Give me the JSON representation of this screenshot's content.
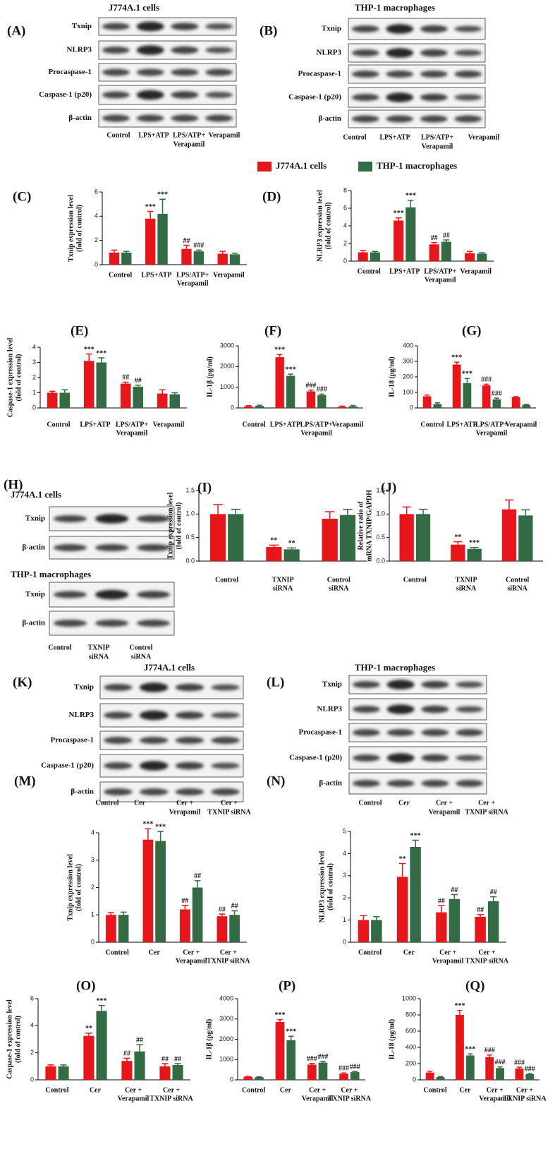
{
  "legend": [
    {
      "name": "J774A.1 cells",
      "color": "#e8161b"
    },
    {
      "name": "THP-1 macrophages",
      "color": "#336b44"
    }
  ],
  "blots": [
    {
      "label": "(A)",
      "groups": [
        {
          "title": "J774A.1 cells",
          "rows": [
            "Txnip",
            "NLRP3",
            "Procaspase-1",
            "Caspase-1 (p20)",
            "β-actin"
          ]
        }
      ],
      "columns": [
        [
          "Control"
        ],
        [
          "LPS+ATP"
        ],
        [
          "LPS/ATP+",
          "Verapamil"
        ],
        [
          "Verapamil"
        ]
      ]
    },
    {
      "label": "(B)",
      "groups": [
        {
          "title": "THP-1 macrophages",
          "rows": [
            "Txnip",
            "NLRP3",
            "Procaspase-1",
            "Caspase-1 (p20)",
            "β-actin"
          ]
        }
      ],
      "columns": [
        [
          "Control"
        ],
        [
          "LPS+ATP"
        ],
        [
          "LPS/ATP+",
          "Verapamil"
        ],
        [
          "Verapamil"
        ]
      ]
    },
    {
      "label": "(H)",
      "groups": [
        {
          "title": "J774A.1 cells",
          "rows": [
            "Txnip",
            "β-actin"
          ]
        },
        {
          "title": "THP-1 macrophages",
          "rows": [
            "Txnip",
            "β-actin"
          ]
        }
      ],
      "columns": [
        [
          "Control"
        ],
        [
          "TXNIP",
          "siRNA"
        ],
        [
          "Control",
          "siRNA"
        ]
      ]
    },
    {
      "label": "(K)",
      "groups": [
        {
          "title": "J774A.1 cells",
          "rows": [
            "Txnip",
            "NLRP3",
            "Procaspase-1",
            "Caspase-1 (p20)",
            "β-actin"
          ]
        }
      ],
      "columns": [
        [
          "Control"
        ],
        [
          "Cer"
        ],
        [
          "Cer +",
          "Verapamil"
        ],
        [
          "Cer +",
          "TXNIP siRNA"
        ]
      ]
    },
    {
      "label": "(L)",
      "groups": [
        {
          "title": "THP-1 macrophages",
          "rows": [
            "Txnip",
            "NLRP3",
            "Procaspase-1",
            "Caspase-1 (p20)",
            "β-actin"
          ]
        }
      ],
      "columns": [
        [
          "Control"
        ],
        [
          "Cer"
        ],
        [
          "Cer +",
          "Verapamil"
        ],
        [
          "Cer +",
          "TXNIP siRNA"
        ]
      ]
    }
  ],
  "chart_data": [
    {
      "type": "bar",
      "label": "(C)",
      "ylabel": [
        "Txnip expression level",
        "(fold of control)"
      ],
      "categories": [
        [
          "Control"
        ],
        [
          "LPS+ATP"
        ],
        [
          "LPS/ATP+",
          "Verapamil"
        ],
        [
          "Verapamil"
        ]
      ],
      "ylim": [
        0,
        6
      ],
      "yticks": [
        0,
        2,
        4,
        6
      ],
      "series": [
        {
          "color": "#e8161b",
          "values": [
            1.0,
            3.8,
            1.3,
            0.9
          ],
          "errors": [
            0.2,
            0.6,
            0.3,
            0.2
          ],
          "annotations": [
            null,
            "***",
            "##",
            null
          ]
        },
        {
          "color": "#336b44",
          "values": [
            1.0,
            4.2,
            1.1,
            0.85
          ],
          "errors": [
            0.1,
            1.2,
            0.1,
            0.1
          ],
          "annotations": [
            null,
            "***",
            "###",
            null
          ]
        }
      ]
    },
    {
      "type": "bar",
      "label": "(D)",
      "ylabel": [
        "NLRP3 expression level",
        "(fold of control)"
      ],
      "categories": [
        [
          "Control"
        ],
        [
          "LPS+ATP"
        ],
        [
          "LPS/ATP+",
          "Verapamil"
        ],
        [
          "Verapamil"
        ]
      ],
      "ylim": [
        0,
        8
      ],
      "yticks": [
        0,
        2,
        4,
        6,
        8
      ],
      "series": [
        {
          "color": "#e8161b",
          "values": [
            1.0,
            4.6,
            1.9,
            0.9
          ],
          "errors": [
            0.2,
            0.3,
            0.2,
            0.2
          ],
          "annotations": [
            null,
            "***",
            "##",
            null
          ]
        },
        {
          "color": "#336b44",
          "values": [
            1.0,
            6.1,
            2.2,
            0.85
          ],
          "errors": [
            0.1,
            0.8,
            0.2,
            0.1
          ],
          "annotations": [
            null,
            "***",
            "##",
            null
          ]
        }
      ]
    },
    {
      "type": "bar",
      "label": "(E)",
      "ylabel": [
        "Caspase-1 expression level",
        "(fold of control)"
      ],
      "categories": [
        [
          "Control"
        ],
        [
          "LPS+ATP"
        ],
        [
          "LPS/ATP+",
          "Verapamil"
        ],
        [
          "Verapamil"
        ]
      ],
      "ylim": [
        0,
        4
      ],
      "yticks": [
        0,
        1,
        2,
        3,
        4
      ],
      "series": [
        {
          "color": "#e8161b",
          "values": [
            1.0,
            3.1,
            1.6,
            0.95
          ],
          "errors": [
            0.1,
            0.45,
            0.1,
            0.25
          ],
          "annotations": [
            null,
            "***",
            "##",
            null
          ]
        },
        {
          "color": "#336b44",
          "values": [
            1.0,
            3.0,
            1.4,
            0.9
          ],
          "errors": [
            0.2,
            0.3,
            0.1,
            0.1
          ],
          "annotations": [
            null,
            "***",
            "##",
            null
          ]
        }
      ]
    },
    {
      "type": "bar",
      "label": "(F)",
      "ylabel": [
        "IL-1β (pg/ml)"
      ],
      "categories": [
        [
          "Control"
        ],
        [
          "LPS+ATP"
        ],
        [
          "LPS/ATP+",
          "Verapamil"
        ],
        [
          "Verapamil"
        ]
      ],
      "ylim": [
        0,
        3000
      ],
      "yticks": [
        0,
        1000,
        2000,
        3000
      ],
      "series": [
        {
          "color": "#e8161b",
          "values": [
            80,
            2450,
            800,
            60
          ],
          "errors": [
            30,
            130,
            60,
            30
          ],
          "annotations": [
            null,
            "***",
            "###",
            null
          ]
        },
        {
          "color": "#336b44",
          "values": [
            100,
            1550,
            620,
            80
          ],
          "errors": [
            30,
            80,
            50,
            40
          ],
          "annotations": [
            null,
            "***",
            "###",
            null
          ]
        }
      ]
    },
    {
      "type": "bar",
      "label": "(G)",
      "ylabel": [
        "IL-18 (pg/ml)"
      ],
      "categories": [
        [
          "Control"
        ],
        [
          "LPS+ATP"
        ],
        [
          "LPS/ATP+",
          "Verapamil"
        ],
        [
          "Verapamil"
        ]
      ],
      "ylim": [
        0,
        400
      ],
      "yticks": [
        0,
        100,
        200,
        300,
        400
      ],
      "series": [
        {
          "color": "#e8161b",
          "values": [
            75,
            280,
            145,
            70
          ],
          "errors": [
            8,
            15,
            8,
            3
          ],
          "annotations": [
            null,
            "***",
            "###",
            null
          ]
        },
        {
          "color": "#336b44",
          "values": [
            25,
            160,
            55,
            20
          ],
          "errors": [
            8,
            30,
            8,
            3
          ],
          "annotations": [
            null,
            "***",
            "###",
            null
          ]
        }
      ]
    },
    {
      "type": "bar",
      "label": "(I)",
      "ylabel": [
        "Txnip expression level",
        "(fold of control)"
      ],
      "categories": [
        [
          "Control"
        ],
        [
          "TXNIP",
          "siRNA"
        ],
        [
          "Control",
          "siRNA"
        ]
      ],
      "ylim": [
        0,
        1.5
      ],
      "yticks": [
        {
          "value": 0,
          "label": "0.0"
        },
        0.5,
        {
          "value": 1,
          "label": "1.0"
        },
        1.5
      ],
      "series": [
        {
          "color": "#e8161b",
          "values": [
            1.0,
            0.3,
            0.9
          ],
          "errors": [
            0.2,
            0.04,
            0.15
          ],
          "annotations": [
            null,
            "**",
            null
          ]
        },
        {
          "color": "#336b44",
          "values": [
            1.0,
            0.25,
            0.98
          ],
          "errors": [
            0.1,
            0.03,
            0.12
          ],
          "annotations": [
            null,
            "**",
            null
          ]
        }
      ]
    },
    {
      "type": "bar",
      "label": "(J)",
      "ylabel": [
        "Relative ratio of",
        "mRNA TXNIP/GAPDH"
      ],
      "categories": [
        [
          "Control"
        ],
        [
          "TXNIP",
          "siRNA"
        ],
        [
          "Control",
          "siRNA"
        ]
      ],
      "ylim": [
        0,
        1.5
      ],
      "yticks": [
        {
          "value": 0,
          "label": "0.0"
        },
        0.5,
        {
          "value": 1,
          "label": "1.0"
        },
        1.5
      ],
      "series": [
        {
          "color": "#e8161b",
          "values": [
            1.0,
            0.35,
            1.1
          ],
          "errors": [
            0.15,
            0.06,
            0.2
          ],
          "annotations": [
            null,
            "**",
            null
          ]
        },
        {
          "color": "#336b44",
          "values": [
            1.0,
            0.26,
            0.97
          ],
          "errors": [
            0.1,
            0.03,
            0.12
          ],
          "annotations": [
            null,
            "***",
            null
          ]
        }
      ]
    },
    {
      "type": "bar",
      "label": "(M)",
      "ylabel": [
        "Txnip expression level",
        "(fold of control)"
      ],
      "categories": [
        [
          "Control"
        ],
        [
          "Cer"
        ],
        [
          "Cer +",
          "Verapamil"
        ],
        [
          "Cer +",
          "TXNIP siRNA"
        ]
      ],
      "ylim": [
        0,
        4
      ],
      "yticks": [
        0,
        1,
        2,
        3,
        4
      ],
      "series": [
        {
          "color": "#e8161b",
          "values": [
            1.0,
            3.75,
            1.2,
            0.95
          ],
          "errors": [
            0.08,
            0.4,
            0.15,
            0.08
          ],
          "annotations": [
            null,
            "***",
            "##",
            "##"
          ]
        },
        {
          "color": "#336b44",
          "values": [
            1.0,
            3.7,
            2.0,
            1.0
          ],
          "errors": [
            0.1,
            0.35,
            0.25,
            0.15
          ],
          "annotations": [
            null,
            "***",
            "##",
            "##"
          ]
        }
      ]
    },
    {
      "type": "bar",
      "label": "(N)",
      "ylabel": [
        "NLRP3 expression level",
        "(fold of control)"
      ],
      "categories": [
        [
          "Control"
        ],
        [
          "Cer"
        ],
        [
          "Cer +",
          "Verapamil"
        ],
        [
          "Cer +",
          "TXNIP siRNA"
        ]
      ],
      "ylim": [
        0,
        5
      ],
      "yticks": [
        0,
        1,
        2,
        3,
        4,
        5
      ],
      "series": [
        {
          "color": "#e8161b",
          "values": [
            1.0,
            2.95,
            1.35,
            1.15
          ],
          "errors": [
            0.2,
            0.6,
            0.3,
            0.1
          ],
          "annotations": [
            null,
            "**",
            "##",
            "##"
          ]
        },
        {
          "color": "#336b44",
          "values": [
            1.0,
            4.3,
            1.95,
            1.85
          ],
          "errors": [
            0.15,
            0.3,
            0.2,
            0.2
          ],
          "annotations": [
            null,
            "***",
            "##",
            "##"
          ]
        }
      ]
    },
    {
      "type": "bar",
      "label": "(O)",
      "ylabel": [
        "Caspase-1 expression level",
        "(fold of control)"
      ],
      "categories": [
        [
          "Control"
        ],
        [
          "Cer"
        ],
        [
          "Cer +",
          "Verapamil"
        ],
        [
          "Cer +",
          "TXNIP siRNA"
        ]
      ],
      "ylim": [
        0,
        6
      ],
      "yticks": [
        0,
        2,
        4,
        6
      ],
      "series": [
        {
          "color": "#e8161b",
          "values": [
            1.0,
            3.25,
            1.4,
            1.0
          ],
          "errors": [
            0.1,
            0.2,
            0.2,
            0.2
          ],
          "annotations": [
            null,
            "**",
            "##",
            "##"
          ]
        },
        {
          "color": "#336b44",
          "values": [
            1.0,
            5.1,
            2.1,
            1.1
          ],
          "errors": [
            0.1,
            0.4,
            0.5,
            0.1
          ],
          "annotations": [
            null,
            "***",
            "##",
            "##"
          ]
        }
      ]
    },
    {
      "type": "bar",
      "label": "(P)",
      "ylabel": [
        "IL-1β (pg/ml)"
      ],
      "categories": [
        [
          "Control"
        ],
        [
          "Cer"
        ],
        [
          "Cer +",
          "Verapamil"
        ],
        [
          "Cer +",
          "TXNIP siRNA"
        ]
      ],
      "ylim": [
        0,
        4000
      ],
      "yticks": [
        0,
        1000,
        2000,
        3000,
        4000
      ],
      "series": [
        {
          "color": "#e8161b",
          "values": [
            150,
            2850,
            750,
            300
          ],
          "errors": [
            20,
            120,
            60,
            40
          ],
          "annotations": [
            null,
            "***",
            "###",
            "###"
          ]
        },
        {
          "color": "#336b44",
          "values": [
            130,
            1950,
            850,
            380
          ],
          "errors": [
            20,
            200,
            60,
            30
          ],
          "annotations": [
            null,
            "***",
            "###",
            "###"
          ]
        }
      ]
    },
    {
      "type": "bar",
      "label": "(Q)",
      "ylabel": [
        "IL-18 (pg/ml)"
      ],
      "categories": [
        [
          "Control"
        ],
        [
          "Cer"
        ],
        [
          "Cer +",
          "Verapamil"
        ],
        [
          "Cer +",
          "TXNIP siRNA"
        ]
      ],
      "ylim": [
        0,
        1000
      ],
      "yticks": [
        0,
        200,
        400,
        600,
        800,
        1000
      ],
      "series": [
        {
          "color": "#e8161b",
          "values": [
            90,
            800,
            280,
            140
          ],
          "errors": [
            15,
            55,
            25,
            15
          ],
          "annotations": [
            null,
            "***",
            "###",
            "###"
          ]
        },
        {
          "color": "#336b44",
          "values": [
            35,
            300,
            145,
            70
          ],
          "errors": [
            5,
            20,
            15,
            8
          ],
          "annotations": [
            null,
            "***",
            "###",
            "###"
          ]
        }
      ]
    }
  ]
}
